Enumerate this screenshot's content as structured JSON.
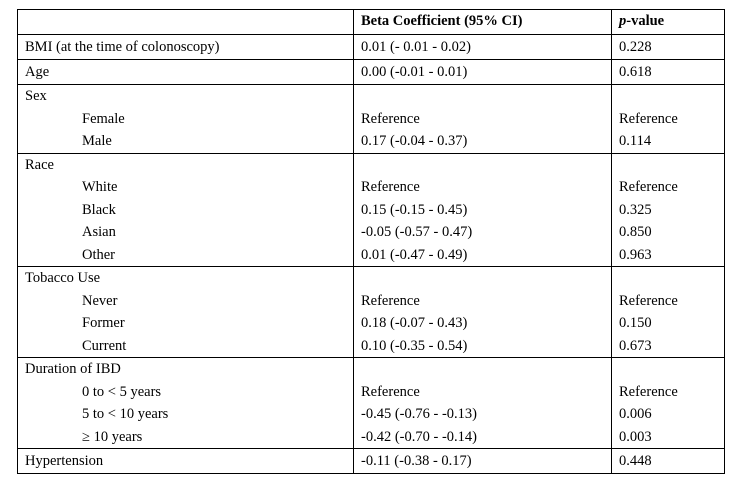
{
  "header": {
    "col1": "",
    "col2": "Beta Coefficient (95% CI)",
    "col3_italic": "p",
    "col3_rest": "-value"
  },
  "rows": [
    {
      "label": "BMI (at the time of colonoscopy)",
      "beta": "0.01 (- 0.01 - 0.02)",
      "p": "0.228"
    },
    {
      "label": "Age",
      "beta": "0.00 (-0.01 - 0.01)",
      "p": "0.618"
    },
    {
      "label": "Sex",
      "items": [
        {
          "label": "Female",
          "beta": "Reference",
          "p": "Reference"
        },
        {
          "label": "Male",
          "beta": "0.17 (-0.04 - 0.37)",
          "p": "0.114"
        }
      ]
    },
    {
      "label": "Race",
      "items": [
        {
          "label": "White",
          "beta": "Reference",
          "p": "Reference"
        },
        {
          "label": "Black",
          "beta": "0.15 (-0.15 - 0.45)",
          "p": "0.325"
        },
        {
          "label": "Asian",
          "beta": "-0.05 (-0.57 - 0.47)",
          "p": "0.850"
        },
        {
          "label": "Other",
          "beta": "0.01 (-0.47 - 0.49)",
          "p": "0.963"
        }
      ]
    },
    {
      "label": "Tobacco Use",
      "items": [
        {
          "label": "Never",
          "beta": "Reference",
          "p": "Reference"
        },
        {
          "label": "Former",
          "beta": "0.18 (-0.07 - 0.43)",
          "p": "0.150"
        },
        {
          "label": "Current",
          "beta": "0.10 (-0.35 - 0.54)",
          "p": "0.673"
        }
      ]
    },
    {
      "label": "Duration of IBD",
      "items": [
        {
          "label": "0 to < 5 years",
          "beta": "Reference",
          "p": "Reference"
        },
        {
          "label": "5 to < 10 years",
          "beta": "-0.45 (-0.76 - -0.13)",
          "p": "0.006"
        },
        {
          "label": "≥ 10 years",
          "beta": "-0.42 (-0.70 - -0.14)",
          "p": "0.003"
        }
      ]
    },
    {
      "label": "Hypertension",
      "beta": "-0.11 (-0.38 - 0.17)",
      "p": "0.448"
    }
  ]
}
